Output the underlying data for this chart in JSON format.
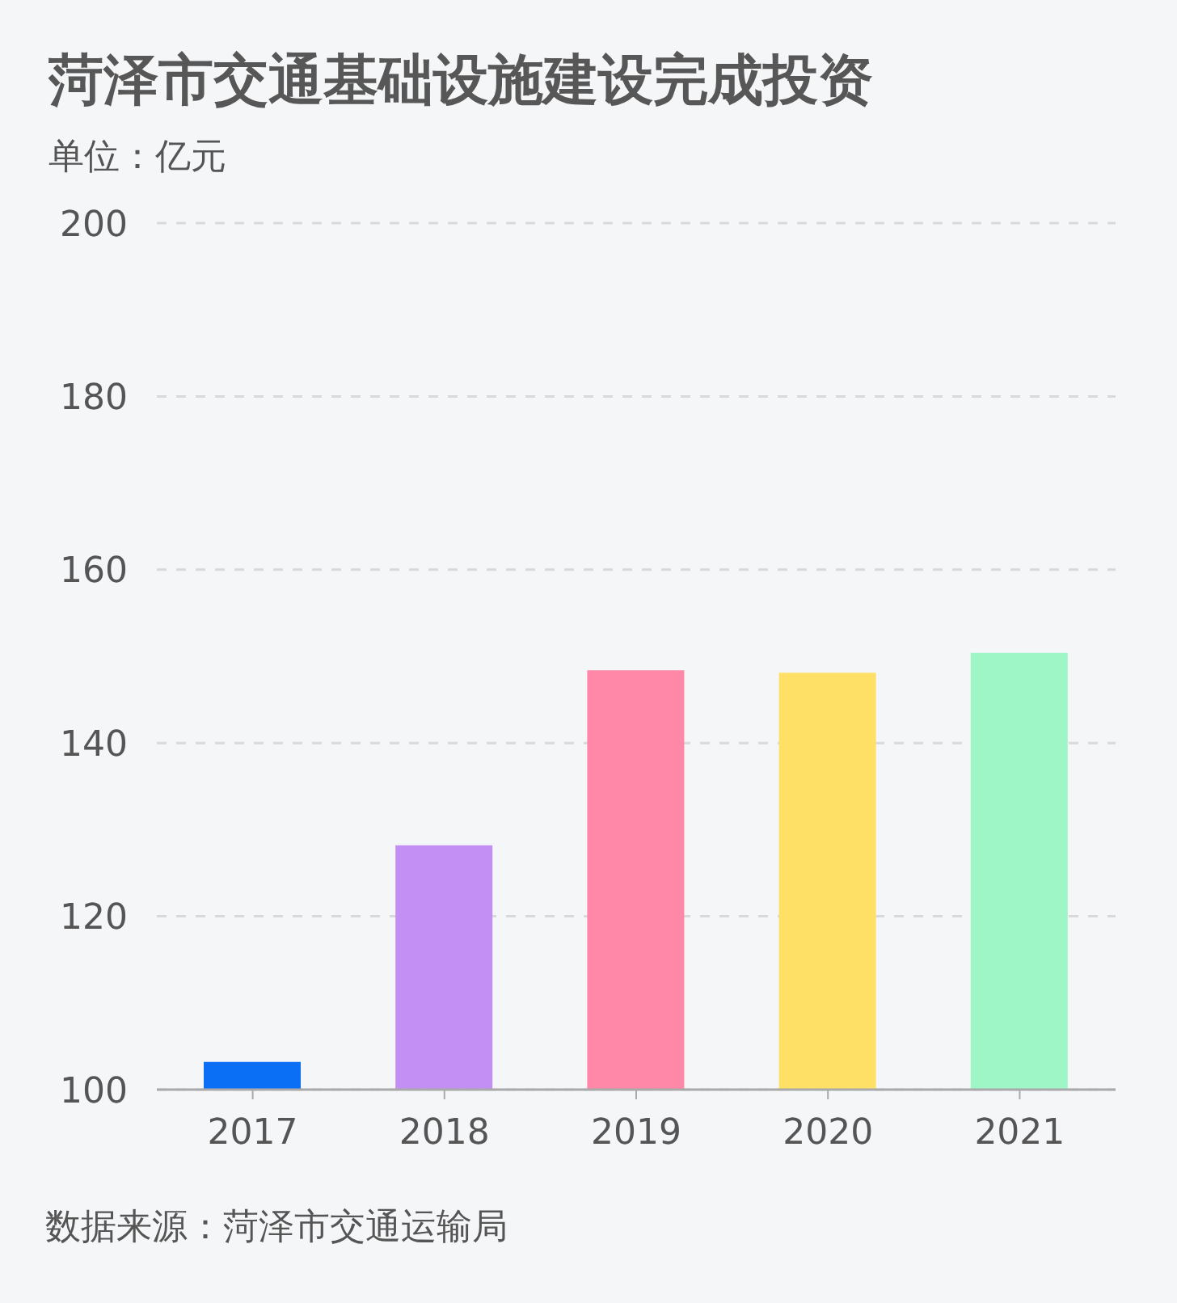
{
  "chart_data": {
    "type": "bar",
    "title": "菏泽市交通基础设施建设完成投资",
    "subtitle": "单位：亿元",
    "annotations": [
      "数据来源：菏泽市交通运输局"
    ],
    "categories": [
      "2017",
      "2018",
      "2019",
      "2020",
      "2021"
    ],
    "values": [
      103.2,
      128.2,
      148.4,
      148.1,
      150.4
    ],
    "colors": [
      "#0a6ff5",
      "#c48ff5",
      "#ff88a8",
      "#ffe066",
      "#9ef5c6"
    ],
    "ylim": [
      100,
      200
    ],
    "yticks": [
      100,
      120,
      140,
      160,
      180,
      200
    ],
    "grid": "y"
  }
}
